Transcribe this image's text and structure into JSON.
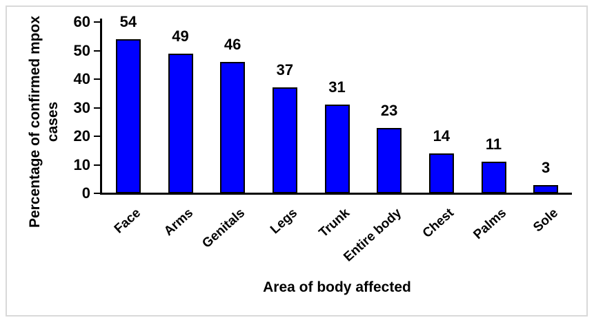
{
  "chart_data": {
    "type": "bar",
    "title": "",
    "categories": [
      "Face",
      "Arms",
      "Genitals",
      "Legs",
      "Trunk",
      "Entire body",
      "Chest",
      "Palms",
      "Sole"
    ],
    "values": [
      54,
      49,
      46,
      37,
      31,
      23,
      14,
      11,
      3
    ],
    "data_labels": [
      "54",
      "49",
      "46",
      "37",
      "31",
      "23",
      "14",
      "11",
      "3"
    ],
    "xlabel": "Area of body affected",
    "ylabel": "Percentage of confirmed mpox cases",
    "ylabel_lines": [
      "Percentage of confirmed mpox",
      "cases"
    ],
    "ylim": [
      0,
      60
    ],
    "yticks": [
      0,
      10,
      20,
      30,
      40,
      50,
      60
    ],
    "grid": false,
    "legend": "none",
    "colors": {
      "bar_fill": "#0000FF",
      "bar_border": "#000000",
      "axis": "#000000",
      "text": "#000000",
      "frame_border": "#D9D9D9",
      "background": "#FFFFFF"
    }
  }
}
